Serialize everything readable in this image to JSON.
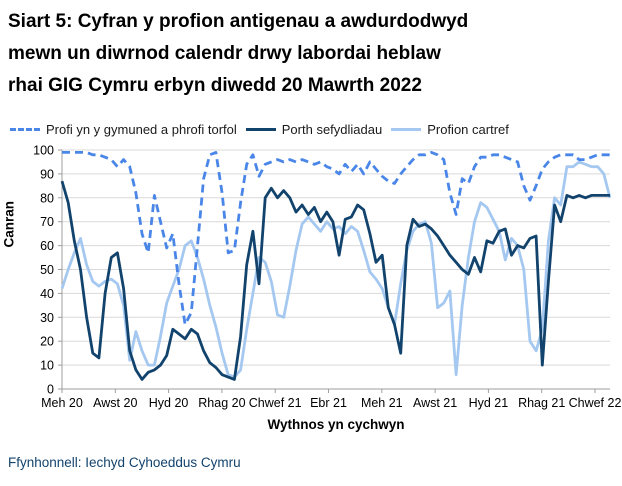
{
  "title_lines": [
    "Siart 5: Cyfran y profion antigenau a awdurdodwyd",
    "mewn un diwrnod calendr drwy labordai heblaw",
    "rhai GIG Cymru erbyn diwedd 20 Mawrth 2022"
  ],
  "source": "Ffynhonnell: Iechyd Cyhoeddus Cymru",
  "chart_data": {
    "type": "line",
    "title": "Siart 5: Cyfran y profion antigenau a awdurdodwyd mewn un diwrnod calendr drwy labordai heblaw rhai GIG Cymru erbyn diwedd 20 Mawrth 2022",
    "xlabel": "Wythnos yn cychwyn",
    "ylabel": "Canran",
    "ylim": [
      0,
      100
    ],
    "y_ticks": [
      0,
      10,
      20,
      30,
      40,
      50,
      60,
      70,
      80,
      90,
      100
    ],
    "x_tick_labels": [
      "Meh 20",
      "Awst 20",
      "Hyd 20",
      "Rhag 20",
      "Chwef 21",
      "Ebr 21",
      "Meh 21",
      "Awst 21",
      "Hyd 21",
      "Rhag 21",
      "Chwef 22"
    ],
    "x_unit": "week starting, Jun 2020 - Mar 2022, 90 weekly points",
    "grid": "horizontal",
    "legend_position": "top",
    "colors": {
      "grid": "#d9d9d9",
      "axis": "#9e9e9e",
      "text": "#000000",
      "source_text": "#12436d"
    },
    "series": [
      {
        "name": "Profi yn y gymuned a phrofi torfol",
        "color": "#4a86e8",
        "dash": true,
        "values": [
          99,
          99,
          99,
          99,
          99,
          98,
          98,
          97,
          96,
          93,
          96,
          93,
          82,
          65,
          57,
          81,
          70,
          59,
          65,
          44,
          27,
          32,
          60,
          88,
          98,
          99,
          82,
          57,
          58,
          78,
          94,
          98,
          89,
          94,
          95,
          96,
          95,
          96,
          95,
          96,
          95,
          94,
          95,
          93,
          92,
          90,
          94,
          91,
          94,
          90,
          95,
          92,
          89,
          87,
          86,
          90,
          93,
          96,
          98,
          98,
          99,
          98,
          96,
          82,
          73,
          88,
          86,
          93,
          97,
          97,
          98,
          98,
          97,
          96,
          95,
          85,
          79,
          85,
          92,
          95,
          97,
          98,
          98,
          98,
          96,
          96,
          97,
          98,
          98,
          98
        ]
      },
      {
        "name": "Porth sefydliadau",
        "color": "#12436d",
        "dash": false,
        "values": [
          87,
          78,
          62,
          50,
          30,
          15,
          13,
          40,
          55,
          57,
          42,
          16,
          8,
          4,
          7,
          8,
          10,
          14,
          25,
          23,
          21,
          25,
          23,
          16,
          11,
          9,
          6,
          5,
          4,
          22,
          52,
          66,
          44,
          80,
          84,
          80,
          83,
          80,
          74,
          77,
          73,
          76,
          70,
          74,
          70,
          56,
          71,
          72,
          77,
          75,
          65,
          53,
          56,
          34,
          27,
          15,
          60,
          71,
          68,
          69,
          67,
          64,
          60,
          56,
          53,
          50,
          48,
          55,
          49,
          62,
          61,
          66,
          67,
          56,
          60,
          59,
          63,
          64,
          10,
          45,
          77,
          70,
          81,
          80,
          81,
          80,
          81,
          81,
          81,
          81
        ]
      },
      {
        "name": "Profion cartref",
        "color": "#a5c8f0",
        "dash": false,
        "values": [
          42,
          50,
          57,
          63,
          52,
          45,
          43,
          45,
          46,
          44,
          35,
          12,
          24,
          16,
          10,
          10,
          22,
          36,
          43,
          50,
          60,
          62,
          55,
          46,
          35,
          26,
          15,
          6,
          5,
          8,
          25,
          40,
          55,
          53,
          45,
          31,
          30,
          43,
          58,
          69,
          72,
          69,
          66,
          70,
          67,
          68,
          65,
          68,
          66,
          58,
          49,
          46,
          42,
          34,
          27,
          44,
          58,
          66,
          69,
          70,
          61,
          34,
          36,
          41,
          6,
          35,
          55,
          70,
          78,
          76,
          71,
          66,
          54,
          63,
          60,
          50,
          20,
          16,
          25,
          62,
          80,
          77,
          93,
          93,
          95,
          94,
          93,
          93,
          90,
          80
        ]
      }
    ]
  }
}
